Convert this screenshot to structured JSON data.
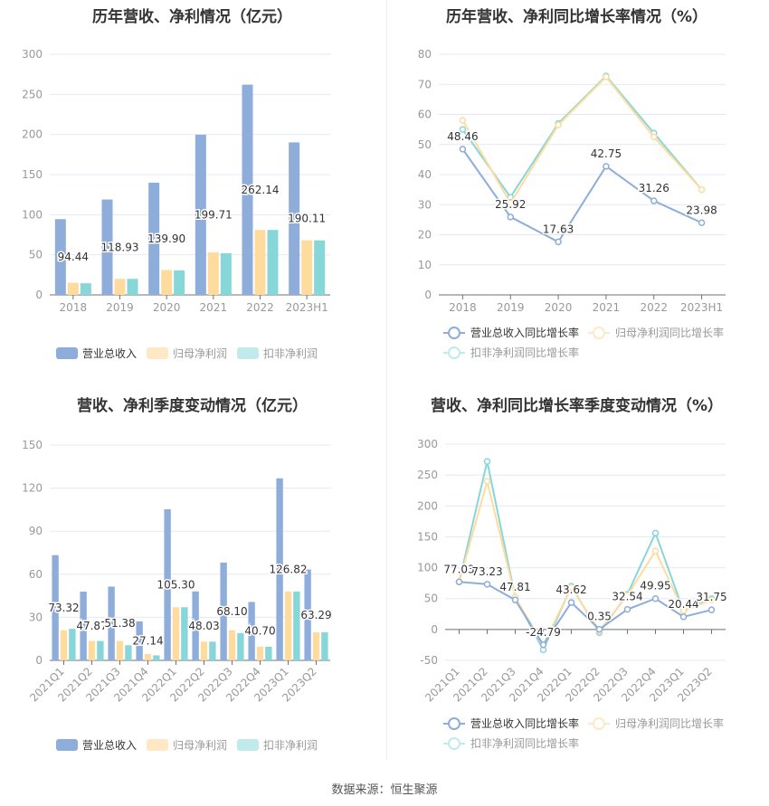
{
  "colors": {
    "revenue": "#8eadda",
    "parent_net": "#ffdb9e",
    "deducted_net": "#87d6d8"
  },
  "source": "数据来源：恒生聚源",
  "chart_data": [
    {
      "type": "bar",
      "title": "历年营收、净利情况（亿元）",
      "categories": [
        "2018",
        "2019",
        "2020",
        "2021",
        "2022",
        "2023H1"
      ],
      "ylim": [
        0,
        300
      ],
      "yticks": [
        0,
        50,
        100,
        150,
        200,
        250,
        300
      ],
      "series": [
        {
          "name": "营业总收入",
          "values": [
            94.44,
            118.93,
            139.9,
            199.71,
            262.14,
            190.11
          ],
          "labels": [
            "94.44",
            "118.93",
            "139.90",
            "199.71",
            "262.14",
            "190.11"
          ]
        },
        {
          "name": "归母净利润",
          "values": [
            15,
            20,
            31,
            53,
            81,
            68
          ]
        },
        {
          "name": "扣非净利润",
          "values": [
            14.5,
            20,
            30.5,
            52,
            81,
            68
          ]
        }
      ]
    },
    {
      "type": "line",
      "title": "历年营收、净利同比增长率情况（%）",
      "categories": [
        "2018",
        "2019",
        "2020",
        "2021",
        "2022",
        "2023H1"
      ],
      "ylim": [
        0,
        80
      ],
      "yticks": [
        0,
        10,
        20,
        30,
        40,
        50,
        60,
        70,
        80
      ],
      "series": [
        {
          "name": "营业总收入同比增长率",
          "values": [
            48.46,
            25.92,
            17.63,
            42.75,
            31.26,
            23.98
          ],
          "labels": [
            "48.46",
            "25.92",
            "17.63",
            "42.75",
            "31.26",
            "23.98"
          ]
        },
        {
          "name": "归母净利润同比增长率",
          "values": [
            58,
            30.5,
            56.5,
            72.5,
            52.5,
            35
          ]
        },
        {
          "name": "扣非净利润同比增长率",
          "values": [
            55,
            32.5,
            57,
            72.8,
            53.8,
            35
          ]
        }
      ]
    },
    {
      "type": "bar",
      "title": "营收、净利季度变动情况（亿元）",
      "categories": [
        "2021Q1",
        "2021Q2",
        "2021Q3",
        "2021Q4",
        "2022Q1",
        "2022Q2",
        "2022Q3",
        "2022Q4",
        "2023Q1",
        "2023Q2"
      ],
      "ylim": [
        0,
        150
      ],
      "yticks": [
        0,
        30,
        60,
        90,
        120,
        150
      ],
      "series": [
        {
          "name": "营业总收入",
          "values": [
            73.32,
            47.87,
            51.38,
            27.14,
            105.3,
            48.03,
            68.1,
            40.7,
            126.82,
            63.29
          ],
          "labels": [
            "73.32",
            "47.87",
            "51.38",
            "27.14",
            "105.30",
            "48.03",
            "68.10",
            "40.70",
            "126.82",
            "63.29"
          ]
        },
        {
          "name": "归母净利润",
          "values": [
            21,
            13.5,
            13.5,
            4.5,
            37,
            13,
            21,
            9.5,
            48,
            19.5
          ]
        },
        {
          "name": "扣非净利润",
          "values": [
            22,
            13.5,
            10.5,
            3.5,
            37,
            13,
            19,
            9.5,
            48,
            19.5
          ]
        }
      ]
    },
    {
      "type": "line",
      "title": "营收、净利同比增长率季度变动情况（%）",
      "categories": [
        "2021Q1",
        "2021Q2",
        "2021Q3",
        "2021Q4",
        "2022Q1",
        "2022Q2",
        "2022Q3",
        "2022Q4",
        "2023Q1",
        "2023Q2"
      ],
      "ylim": [
        -50,
        300
      ],
      "yticks": [
        -50,
        0,
        50,
        100,
        150,
        200,
        250,
        300
      ],
      "series": [
        {
          "name": "营业总收入同比增长率",
          "values": [
            77.03,
            73.23,
            47.81,
            -24.79,
            43.62,
            0.35,
            32.54,
            49.95,
            20.44,
            31.75
          ],
          "labels": [
            "77.03",
            "73.23",
            "47.81",
            "-24.79",
            "43.62",
            "0.35",
            "32.54",
            "49.95",
            "20.44",
            "31.75"
          ]
        },
        {
          "name": "归母净利润同比增长率",
          "values": [
            77,
            240,
            52,
            -25,
            68,
            -2,
            55,
            127,
            30,
            48
          ]
        },
        {
          "name": "扣非净利润同比增长率",
          "values": [
            77,
            272,
            52,
            -33,
            70,
            -5,
            57,
            156,
            30,
            50
          ]
        }
      ]
    }
  ]
}
